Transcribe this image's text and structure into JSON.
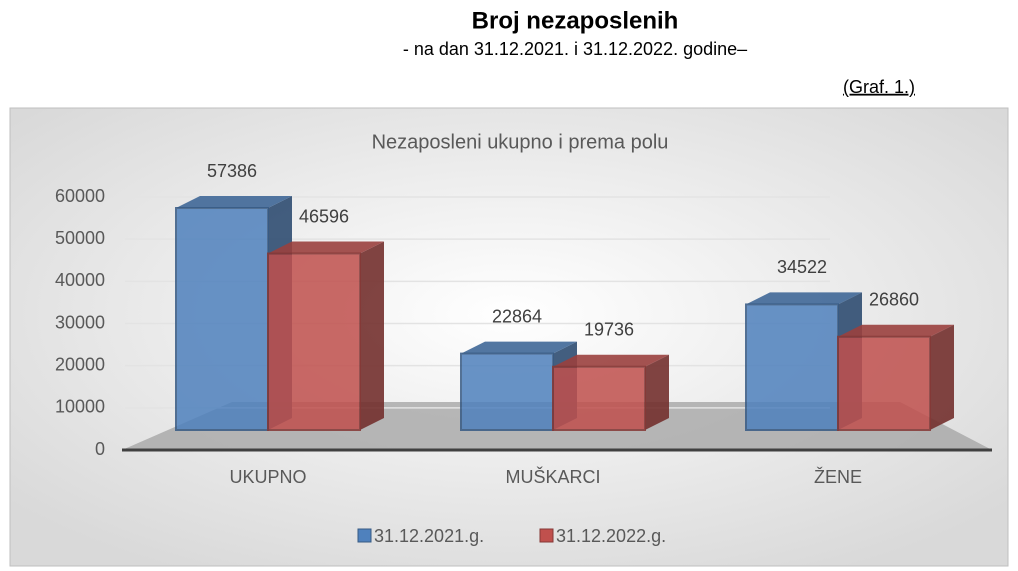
{
  "header": {
    "title": "Broj nezaposlenih",
    "subtitle": "- na dan 31.12.2021. i 31.12.2022. godine–",
    "note": "(Graf. 1.)"
  },
  "chart_data": {
    "type": "bar3d",
    "title": "Nezaposleni ukupno i prema polu",
    "categories": [
      "UKUPNO",
      "MUŠKARCI",
      "ŽENE"
    ],
    "series": [
      {
        "name": "31.12.2021.g.",
        "color": "#4f81bd",
        "values": [
          57386,
          22864,
          34522
        ]
      },
      {
        "name": "31.12.2022.g.",
        "color": "#c0504d",
        "values": [
          46596,
          19736,
          26860
        ]
      }
    ],
    "ylim": [
      0,
      60000
    ],
    "yticks": [
      0,
      10000,
      20000,
      30000,
      40000,
      50000,
      60000
    ],
    "grid": true,
    "legend": "bottom"
  }
}
